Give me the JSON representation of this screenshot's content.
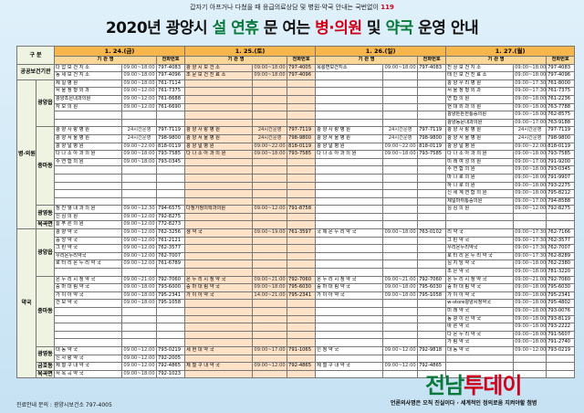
{
  "header": {
    "note_prefix": "갑자기 아프거나 다쳤을 때 응급의료상담 및 병원·약국 안내는 국번없이",
    "note_num": "119",
    "title_a": "2020년 광양시",
    "title_b": "설 연휴",
    "title_c": "문 여는",
    "title_d": "병·의원",
    "title_e": "및",
    "title_f": "약국",
    "title_g": "운영 안내"
  },
  "table": {
    "col_div": "구   분",
    "dates": [
      "1. 24.(금)",
      "1. 25.(토)",
      "1. 26.(일)",
      "1. 27.(월)"
    ],
    "sub_name": "기 관 명",
    "sub_phone": "전화번호",
    "sections": [
      {
        "cat1": "공공보건기관",
        "cat2": "",
        "rows": [
          [
            [
              "다 압 보 건 지 소",
              "09:00~18:00",
              "797-4083"
            ],
            [
              "광 양 시 보 건 소",
              "09:00~18:00",
              "797-4005"
            ],
            [
              "옥룡면보건지소",
              "09:00~18:00",
              "797-4083"
            ],
            [
              "진 상 보 건 지 소",
              "09:00~18:00",
              "797-4083"
            ]
          ],
          [
            [
              "동 세 보 건 지 소",
              "09:00~18:00",
              "797-4096"
            ],
            [
              "조 문 보 건 진 료 소",
              "09:00~18:00",
              "797-4096"
            ],
            [
              "",
              "",
              ""
            ],
            [
              "태 인 보 건 진 료 소",
              "09:00~18:00",
              "797-4096"
            ]
          ]
        ]
      },
      {
        "cat1": "병·의원",
        "cat2": "광양읍",
        "rows": [
          [
            [
              "제 일 병 원",
              "09:00~18:00",
              "761-7114"
            ],
            [
              "",
              "",
              ""
            ],
            [
              "",
              "",
              ""
            ],
            [
              "광 양 우 리 병 원",
              "09:00~17:30",
              "761-8000"
            ]
          ],
          [
            [
              "서 울 정 형 외 과",
              "09:00~12:00",
              "761-7375"
            ],
            [
              "",
              "",
              ""
            ],
            [
              "",
              "",
              ""
            ],
            [
              "서 울 정 형 외 과",
              "09:00~17:30",
              "761-7375"
            ]
          ],
          [
            [
              "광양조은내과의원",
              "09:00~12:00",
              "761-8688"
            ],
            [
              "",
              "",
              ""
            ],
            [
              "",
              "",
              ""
            ],
            [
              "연 합 의 원",
              "09:00~18:00",
              "761-2236"
            ]
          ],
          [
            [
              "자 모 의 원",
              "09:00~12:00",
              "761-6690"
            ],
            [
              "",
              "",
              ""
            ],
            [
              "",
              "",
              ""
            ],
            [
              "현 대 외 과 의 원",
              "09:00~18:00",
              "763-7788"
            ]
          ],
          [
            [
              "",
              "",
              ""
            ],
            [
              "",
              "",
              ""
            ],
            [
              "",
              "",
              ""
            ],
            [
              "광양튼튼한통증의원",
              "09:00~18:00",
              "762-8575"
            ]
          ],
          [
            [
              "",
              "",
              ""
            ],
            [
              "",
              "",
              ""
            ],
            [
              "",
              "",
              ""
            ],
            [
              "광양동문내과의원",
              "09:00~17:00",
              "763-9188"
            ]
          ]
        ]
      },
      {
        "cat1": "",
        "cat2": "중마동",
        "rows": [
          [
            [
              "광 양 사 랑 병 원",
              "24시간운영",
              "797-7119"
            ],
            [
              "광 양 사 랑 병 원",
              "24시간운영",
              "797-7119"
            ],
            [
              "광 양 사 랑 병 원",
              "24시간운영",
              "797-7119"
            ],
            [
              "광 양 사 랑 병 원",
              "24시간운영",
              "797-7119"
            ]
          ],
          [
            [
              "광 양 서 울 병 원",
              "24시간운영",
              "798-9800"
            ],
            [
              "광 양 서 울 병 원",
              "24시간운영",
              "798-9800"
            ],
            [
              "광 양 서 울 병 원",
              "24시간운영",
              "798-9800"
            ],
            [
              "광 양 서 울 병 원",
              "24시간운영",
              "798-9800"
            ]
          ],
          [
            [
              "광 양 널 병 원",
              "09:00~22:00",
              "818-0119"
            ],
            [
              "광 양 널 병 원",
              "09:00~22:00",
              "818-0119"
            ],
            [
              "광 양 널 병 원",
              "09:00~22:00",
              "818-0119"
            ],
            [
              "광 양 널 병 원",
              "09:00~22:00",
              "818-0119"
            ]
          ],
          [
            [
              "다 나 소 아 과 의 원",
              "09:00~18:00",
              "793-7585"
            ],
            [
              "다 나 소 아 과 의 원",
              "09:00~18:00",
              "793-7585"
            ],
            [
              "다 나 소 아 과 의 원",
              "09:00~18:00",
              "793-7585"
            ],
            [
              "다 나 소 아 과 의 원",
              "09:00~18:00",
              "793-7585"
            ]
          ],
          [
            [
              "수 연 합 의 원",
              "09:00~18:00",
              "793-0345"
            ],
            [
              "",
              "",
              ""
            ],
            [
              "",
              "",
              ""
            ],
            [
              "미 래 여 성 의 원",
              "09:00~17:00",
              "791-9200"
            ]
          ],
          [
            [
              "",
              "",
              ""
            ],
            [
              "",
              "",
              ""
            ],
            [
              "",
              "",
              ""
            ],
            [
              "수 연 합 의 원",
              "09:00~18:00",
              "793-0345"
            ]
          ],
          [
            [
              "",
              "",
              ""
            ],
            [
              "",
              "",
              ""
            ],
            [
              "",
              "",
              ""
            ],
            [
              "마 나 로 의 원",
              "09:00~18:00",
              "791-9907"
            ]
          ],
          [
            [
              "",
              "",
              ""
            ],
            [
              "",
              "",
              ""
            ],
            [
              "",
              "",
              ""
            ],
            [
              "하 나 로 의 원",
              "09:00~18:00",
              "793-2275"
            ]
          ],
          [
            [
              "",
              "",
              ""
            ],
            [
              "",
              "",
              ""
            ],
            [
              "",
              "",
              ""
            ],
            [
              "신 세 계 연 합 의 원",
              "09:00~18:00",
              "795-8212"
            ]
          ],
          [
            [
              "",
              "",
              ""
            ],
            [
              "",
              "",
              ""
            ],
            [
              "",
              "",
              ""
            ],
            [
              "제일마취통증의원",
              "09:00~17:00",
              "794-8588"
            ]
          ]
        ]
      },
      {
        "cat1": "",
        "cat2": "광영동",
        "rows": [
          [
            [
              "정 진 웰 내 과 의 원",
              "09:00~12:30",
              "794-6575"
            ],
            [
              "다정가정의학과의원",
              "09:00~12:00",
              "791-8758"
            ],
            [
              "",
              "",
              ""
            ],
            [
              "심 심 의 원",
              "09:00~12:00",
              "792-8275"
            ]
          ],
          [
            [
              "신 심 의 원",
              "09:00~12:00",
              "792-8275"
            ],
            [
              "",
              "",
              ""
            ],
            [
              "",
              "",
              ""
            ],
            [
              "",
              "",
              ""
            ]
          ]
        ]
      },
      {
        "cat1": "",
        "cat2": "옥곡면",
        "rows": [
          [
            [
              "늘 푸 른 의 원",
              "09:00~12:00",
              "772-8273"
            ],
            [
              "",
              "",
              ""
            ],
            [
              "",
              "",
              ""
            ],
            [
              "",
              "",
              ""
            ]
          ]
        ]
      },
      {
        "cat1": "약국",
        "cat2": "광양읍",
        "rows": [
          [
            [
              "광 양 약 국",
              "09:00~12:00",
              "762-3256"
            ],
            [
              "생 약 국",
              "09:00~19:00",
              "761-3597"
            ],
            [
              "국 제 온 누 리 약 국",
              "09:00~18:00",
              "763-0102"
            ],
            [
              "리 약 국",
              "09:00~17:30",
              "762-7166"
            ]
          ],
          [
            [
              "중 앙 약 국",
              "09:00~12:00",
              "761-2121"
            ],
            [
              "",
              "",
              ""
            ],
            [
              "",
              "",
              ""
            ],
            [
              "그 린 약 국",
              "09:00~17:30",
              "762-3577"
            ]
          ],
          [
            [
              "그 린 약 국",
              "09:00~12:00",
              "762-3577"
            ],
            [
              "",
              "",
              ""
            ],
            [
              "",
              "",
              ""
            ],
            [
              "우리온누리약국",
              "09:00~17:30",
              "762-7007"
            ]
          ],
          [
            [
              "우리온누리약국",
              "09:00~12:00",
              "762-7007"
            ],
            [
              "",
              "",
              ""
            ],
            [
              "",
              "",
              ""
            ],
            [
              "로 터 리 온 누 리 약 국",
              "09:00~17:30",
              "762-8289"
            ]
          ],
          [
            [
              "로 터 리 온 누 리 약 국",
              "09:00~12:00",
              "761-6789"
            ],
            [
              "",
              "",
              ""
            ],
            [
              "",
              "",
              ""
            ],
            [
              "심 지 당 약 국",
              "09:00~18:00",
              "762-2380"
            ]
          ],
          [
            [
              "",
              "",
              ""
            ],
            [
              "",
              "",
              ""
            ],
            [
              "",
              "",
              ""
            ],
            [
              "조 은 약 국",
              "09:00~18:00",
              "781-3220"
            ]
          ]
        ]
      },
      {
        "cat1": "",
        "cat2": "중마동",
        "rows": [
          [
            [
              "온 누 리 시 청 약 국",
              "09:00~21:00",
              "792-7060"
            ],
            [
              "온 누 리 시 청 약 국",
              "09:00~21:00",
              "792-7060"
            ],
            [
              "온 누 리 시 청 약 국",
              "09:00~21:00",
              "792-7060"
            ],
            [
              "온 누 리 시 청 약 국",
              "09:00~21:00",
              "792-7060"
            ]
          ],
          [
            [
              "중 마 대 림 약 국",
              "09:00~18:00",
              "793-6000"
            ],
            [
              "중 마 대 림 약 국",
              "09:00~18:00",
              "795-6030"
            ],
            [
              "중 마 대 림 약 국",
              "09:00~18:00",
              "795-6030"
            ],
            [
              "중 마 대 림 약 국",
              "09:00~18:00",
              "795-6030"
            ]
          ],
          [
            [
              "가 이 아 약 국",
              "09:00~18:00",
              "795-2341"
            ],
            [
              "가 이 아 약 국",
              "14:00~21:00",
              "795-2341"
            ],
            [
              "가 이 아 약 국",
              "09:00~18:00",
              "795-1058"
            ],
            [
              "가 이 아 약 국",
              "09:00~18:00",
              "795-2341"
            ]
          ],
          [
            [
              "건 보 약 국",
              "09:00~18:00",
              "795-1058"
            ],
            [
              "",
              "",
              ""
            ],
            [
              "",
              "",
              ""
            ],
            [
              "w-store광양시청약국",
              "09:00~18:00",
              "795-4802"
            ]
          ],
          [
            [
              "",
              "",
              ""
            ],
            [
              "",
              "",
              ""
            ],
            [
              "",
              "",
              ""
            ],
            [
              "미 래 약 국",
              "09:00~18:00",
              "793-0076"
            ]
          ],
          [
            [
              "",
              "",
              ""
            ],
            [
              "",
              "",
              ""
            ],
            [
              "",
              "",
              ""
            ],
            [
              "동 광 이 산 약 국",
              "09:00~18:00",
              "793-8119"
            ]
          ],
          [
            [
              "",
              "",
              ""
            ],
            [
              "",
              "",
              ""
            ],
            [
              "",
              "",
              ""
            ],
            [
              "바 른 약 국",
              "09:00~18:00",
              "793-2222"
            ]
          ],
          [
            [
              "",
              "",
              ""
            ],
            [
              "",
              "",
              ""
            ],
            [
              "",
              "",
              ""
            ],
            [
              "다 온 누 리 약 국",
              "09:00~18:00",
              "791-5607"
            ]
          ],
          [
            [
              "",
              "",
              ""
            ],
            [
              "",
              "",
              ""
            ],
            [
              "",
              "",
              ""
            ],
            [
              "가 림 약 국",
              "09:00~18:00",
              "791-2740"
            ]
          ]
        ]
      },
      {
        "cat1": "",
        "cat2": "광영동",
        "rows": [
          [
            [
              "대 동 약 국",
              "09:00~12:00",
              "793-0219"
            ],
            [
              "세 현 대 약 국",
              "09:00~17:00",
              "791-1065"
            ],
            [
              "인 정 약 국",
              "09:00~12:00",
              "792-9818"
            ],
            [
              "대 동 약 국",
              "09:00~12:00",
              "793-0219"
            ]
          ],
          [
            [
              "신 사 랑 약 국",
              "09:00~12:00",
              "792-2005"
            ],
            [
              "",
              "",
              ""
            ],
            [
              "",
              "",
              ""
            ],
            [
              "",
              "",
              ""
            ]
          ]
        ]
      },
      {
        "cat1": "",
        "cat2": "금호동",
        "rows": [
          [
            [
              "제 철 구 내 약 국",
              "09:00~12:00",
              "792-4865"
            ],
            [
              "제 철 구 내 약 국",
              "09:00~12:00",
              "792-4865"
            ],
            [
              "제 철 구 내 약 국",
              "09:00~12:00",
              "792-4865"
            ],
            [
              "",
              "",
              ""
            ]
          ]
        ]
      },
      {
        "cat1": "",
        "cat2": "옥곡면",
        "rows": [
          [
            [
              "서 옥 곡 약 국",
              "09:00~18:00",
              "792-1023"
            ],
            [
              "",
              "",
              ""
            ],
            [
              "",
              "",
              ""
            ],
            [
              "",
              "",
              ""
            ]
          ]
        ]
      }
    ]
  },
  "footer": {
    "contact": "진료안내 문의 : 광양시보건소 797-4005",
    "logo_a": "전남",
    "logo_b": "투데이",
    "slogan": "언론의사명은 오직 진실이다 · 세계적인 정의로움 지켜야할 첨병"
  },
  "colors": {
    "header_date": "#f7b64b",
    "sat_col": "#fde2c8",
    "accent_green": "#0a7a3a",
    "accent_red": "#d0021b"
  }
}
